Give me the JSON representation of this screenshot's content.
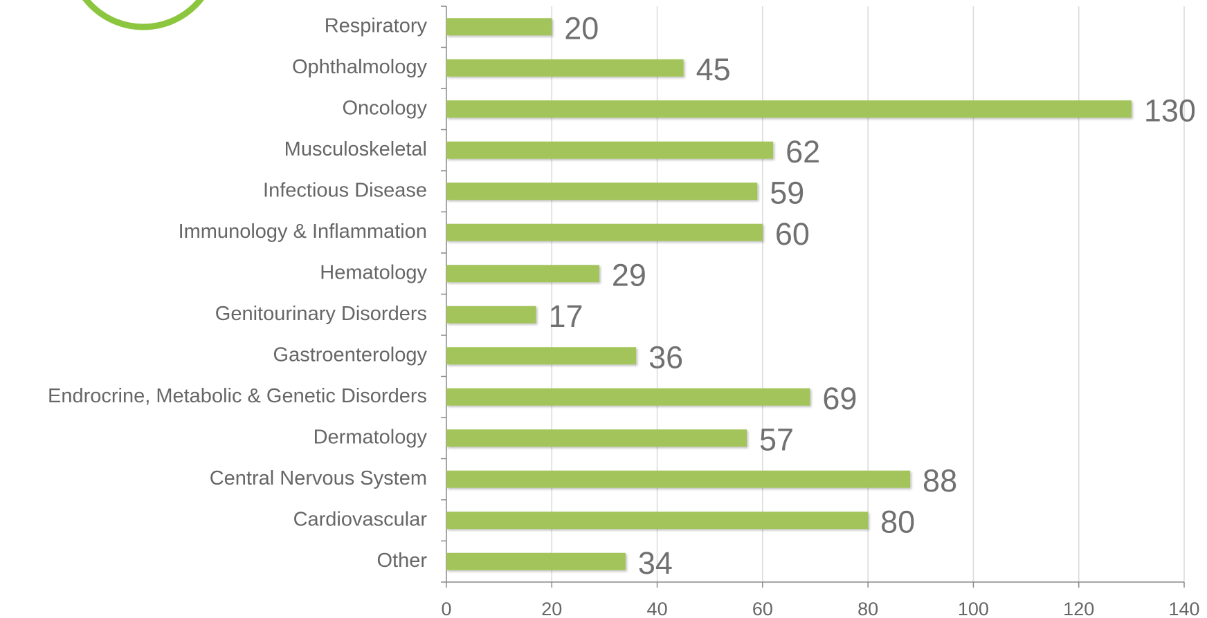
{
  "chart_data": {
    "type": "bar",
    "orientation": "horizontal",
    "categories": [
      "Respiratory",
      "Ophthalmology",
      "Oncology",
      "Musculoskeletal",
      "Infectious Disease",
      "Immunology & Inflammation",
      "Hematology",
      "Genitourinary Disorders",
      "Gastroenterology",
      "Endrocrine, Metabolic & Genetic Disorders",
      "Dermatology",
      "Central Nervous System",
      "Cardiovascular",
      "Other"
    ],
    "values": [
      20,
      45,
      130,
      62,
      59,
      60,
      29,
      17,
      36,
      69,
      57,
      88,
      80,
      34
    ],
    "color": "#a2c45a",
    "xlim": [
      0,
      140
    ],
    "xticks": [
      0,
      20,
      40,
      60,
      80,
      100,
      120,
      140
    ],
    "grid": true
  }
}
